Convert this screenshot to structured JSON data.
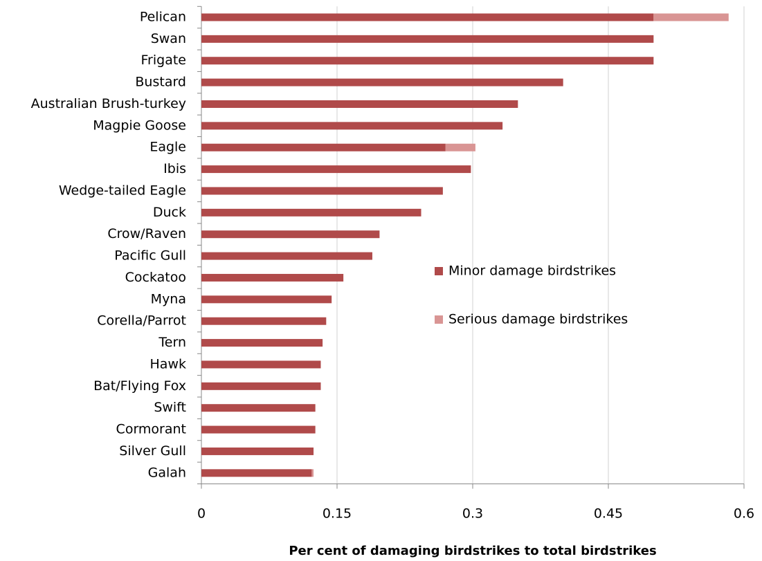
{
  "chart_data": {
    "type": "stacked_barh",
    "xlabel": "Per cent of damaging birdstrikes to total birdstrikes",
    "categories": [
      "Pelican",
      "Swan",
      "Frigate",
      "Bustard",
      "Australian Brush-turkey",
      "Magpie Goose",
      "Eagle",
      "Ibis",
      "Wedge-tailed Eagle",
      "Duck",
      "Crow/Raven",
      "Pacific Gull",
      "Cockatoo",
      "Myna",
      "Corella/Parrot",
      "Tern",
      "Hawk",
      "Bat/Flying Fox",
      "Swift",
      "Cormorant",
      "Silver Gull",
      "Galah"
    ],
    "series": [
      {
        "name": "Minor damage birdstrikes",
        "color": "#b04a4a",
        "values": [
          0.5,
          0.5,
          0.5,
          0.4,
          0.35,
          0.333,
          0.27,
          0.298,
          0.267,
          0.243,
          0.197,
          0.189,
          0.157,
          0.144,
          0.138,
          0.134,
          0.132,
          0.132,
          0.126,
          0.126,
          0.124,
          0.122
        ]
      },
      {
        "name": "Serious damage birdstrikes",
        "color": "#d99594",
        "values": [
          0.083,
          0,
          0,
          0,
          0,
          0,
          0.033,
          0,
          0,
          0,
          0,
          0,
          0,
          0,
          0,
          0,
          0,
          0,
          0,
          0,
          0,
          0.002
        ]
      }
    ],
    "xlim": [
      0,
      0.6
    ],
    "xticks": [
      0,
      0.15,
      0.3,
      0.45,
      0.6
    ],
    "grid": true
  }
}
